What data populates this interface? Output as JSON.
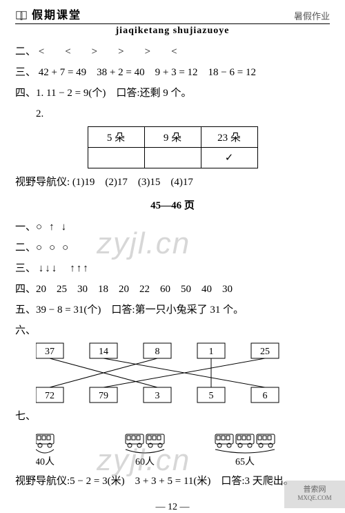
{
  "header": {
    "title": "假期课堂",
    "subtitle": "暑假作业",
    "pinyin": "jiaqiketang  shujiazuoye"
  },
  "s2": {
    "label": "二、",
    "items": [
      "<",
      "<",
      ">",
      ">",
      ">",
      "<"
    ]
  },
  "s3": {
    "label": "三、",
    "eqs": [
      "42 + 7 = 49",
      "38 + 2 = 40",
      "9 + 3 = 12",
      "18 − 6 = 12"
    ]
  },
  "s4": {
    "label": "四、",
    "p1": "1. 11 − 2 = 9(个)　口答:还剩 9 个。",
    "p2": "2."
  },
  "table": {
    "r1": [
      "5 朵",
      "9 朵",
      "23 朵"
    ],
    "r2": [
      "",
      "",
      "✓"
    ]
  },
  "nav1": {
    "label": "视野导航仪:",
    "items": [
      "(1)19",
      "(2)17",
      "(3)15",
      "(4)17"
    ]
  },
  "pages": "45—46 页",
  "p1": {
    "label": "一、",
    "items": [
      "○",
      "↑",
      "↓"
    ]
  },
  "p2": {
    "label": "二、",
    "items": [
      "○",
      "○",
      "○"
    ]
  },
  "p3": {
    "label": "三、",
    "items": [
      "↓↓↓",
      "↑↑↑"
    ]
  },
  "p4": {
    "label": "四、",
    "nums": [
      "20",
      "25",
      "30",
      "18",
      "20",
      "22",
      "60",
      "50",
      "40",
      "30"
    ]
  },
  "p5": {
    "label": "五、",
    "text": "39 − 8 = 31(个)　口答:第一只小兔采了 31 个。"
  },
  "p6": {
    "label": "六、",
    "top": [
      "37",
      "14",
      "8",
      "1",
      "25"
    ],
    "bot": [
      "72",
      "79",
      "3",
      "5",
      "6"
    ],
    "edges": [
      [
        0,
        2
      ],
      [
        1,
        4
      ],
      [
        2,
        0
      ],
      [
        3,
        3
      ],
      [
        4,
        1
      ]
    ]
  },
  "p7": {
    "label": "七、",
    "buses": [
      "40人",
      "60人",
      "65人"
    ]
  },
  "nav2": {
    "label": "视野导航仪:",
    "text": "5 − 2 = 3(米)　3 + 3 + 5 = 11(米)　口答:3 天爬出。"
  },
  "footer": "— 12 —",
  "corner": {
    "l1": "普索网",
    "l2": "MXQE.COM"
  },
  "wm": "zyjl.cn"
}
